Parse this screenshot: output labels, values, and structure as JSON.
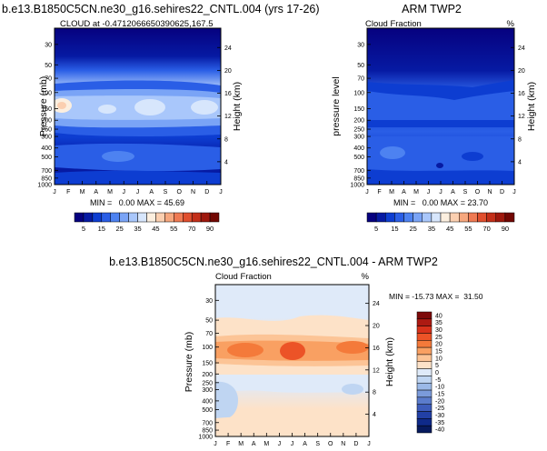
{
  "figure": {
    "top_left_title": "b.e13.B1850C5CN.ne30_g16.sehires22_CNTL.004 (yrs 17-26)",
    "bottom_title": "b.e13.B1850C5CN.ne30_g16.sehires22_CNTL.004 - ARM TWP2"
  },
  "chart_data": [
    {
      "type": "heatmap",
      "panel": "model",
      "title": "",
      "subtitle_left": "CLOUD at -0.4712066650390625,167.5",
      "subtitle_right": "",
      "xlabel": "",
      "ylabel": "Pressure (mb)",
      "ylabel_right": "Height (km)",
      "x_ticks": [
        "J",
        "F",
        "M",
        "A",
        "M",
        "J",
        "J",
        "A",
        "S",
        "O",
        "N",
        "D",
        "J"
      ],
      "pressure_ticks": [
        30,
        50,
        70,
        100,
        150,
        200,
        250,
        300,
        400,
        500,
        700,
        850,
        1000
      ],
      "height_ticks": [
        24,
        20,
        16,
        12,
        8,
        4
      ],
      "ylim": [
        1000,
        20
      ],
      "minmax_text": "MIN =   0.00 MAX = 45.69",
      "min": 0.0,
      "max": 45.69,
      "colorbar_labels": [
        "5",
        "15",
        "25",
        "35",
        "45",
        "55",
        "70",
        "90"
      ],
      "colorbar_levels": [
        0,
        5,
        10,
        15,
        20,
        25,
        30,
        35,
        40,
        45,
        50,
        55,
        60,
        70,
        80,
        90,
        100
      ],
      "colorbar_colors": [
        "#06017f",
        "#061aa3",
        "#0d3dd1",
        "#2a5ee6",
        "#4d82f1",
        "#7aa4f6",
        "#a9c7fb",
        "#d7e6fc",
        "#fcefdf",
        "#fbcfb0",
        "#f6a77e",
        "#ef7a53",
        "#e04f2e",
        "#c32f19",
        "#9e180d",
        "#720703"
      ]
    },
    {
      "type": "heatmap",
      "panel": "obs",
      "title": "ARM TWP2",
      "subtitle_left": "Cloud Fraction",
      "subtitle_right": "%",
      "xlabel": "",
      "ylabel": "pressure level",
      "ylabel_right": "Height (km)",
      "x_ticks": [
        "J",
        "F",
        "M",
        "A",
        "M",
        "J",
        "J",
        "A",
        "S",
        "O",
        "N",
        "D",
        "J"
      ],
      "pressure_ticks": [
        30,
        50,
        70,
        100,
        150,
        200,
        250,
        300,
        400,
        500,
        700,
        850,
        1000
      ],
      "height_ticks": [
        24,
        20,
        16,
        12,
        8,
        4
      ],
      "ylim": [
        1000,
        20
      ],
      "minmax_text": "MIN =   0.00 MAX = 23.70",
      "min": 0.0,
      "max": 23.7,
      "colorbar_labels": [
        "5",
        "15",
        "25",
        "35",
        "45",
        "55",
        "70",
        "90"
      ]
    },
    {
      "type": "heatmap",
      "panel": "diff",
      "title": "",
      "subtitle_left": "Cloud Fraction",
      "subtitle_right": "%",
      "xlabel": "",
      "ylabel": "Pressure (mb)",
      "ylabel_right": "Height (km)",
      "x_ticks": [
        "J",
        "F",
        "M",
        "A",
        "M",
        "J",
        "J",
        "A",
        "S",
        "O",
        "N",
        "D",
        "J"
      ],
      "pressure_ticks": [
        30,
        50,
        70,
        100,
        150,
        200,
        250,
        300,
        400,
        500,
        700,
        850,
        1000
      ],
      "height_ticks": [
        24,
        20,
        16,
        12,
        8,
        4
      ],
      "ylim": [
        1000,
        20
      ],
      "minmax_text": "MIN = -15.73 MAX =  31.50",
      "min": -15.73,
      "max": 31.5,
      "colorbar_labels": [
        "40",
        "35",
        "30",
        "25",
        "20",
        "15",
        "10",
        "5",
        "0",
        "-5",
        "-10",
        "-15",
        "-20",
        "-25",
        "-30",
        "-35",
        "-40"
      ],
      "colorbar_colors": [
        "#7d0a0a",
        "#ad1a12",
        "#d8321b",
        "#ec5327",
        "#f47a3a",
        "#f9a062",
        "#fcc496",
        "#fde2c8",
        "#dfeaf9",
        "#bfd5f2",
        "#9bb9e8",
        "#7b9bdb",
        "#5b7ccc",
        "#3d5cbb",
        "#2240a6",
        "#0f2a8a",
        "#071a5e"
      ]
    }
  ]
}
